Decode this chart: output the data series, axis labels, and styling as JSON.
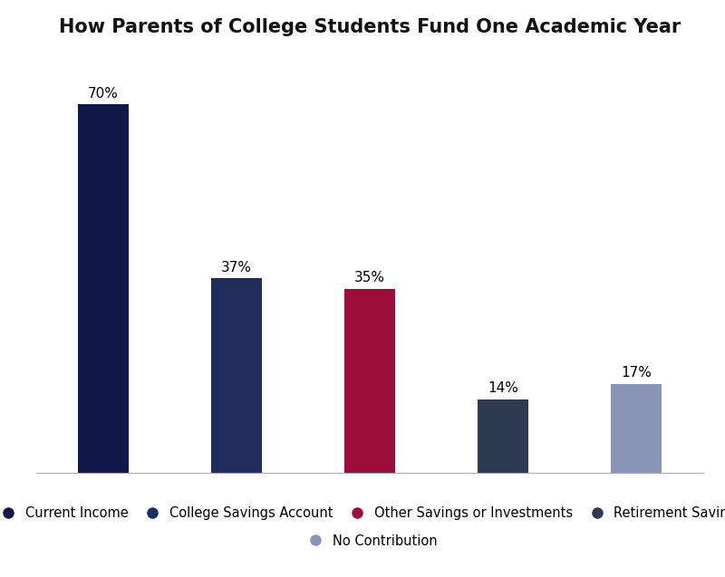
{
  "title": "How Parents of College Students Fund One Academic Year",
  "categories": [
    "Current Income",
    "College Savings Account",
    "Other Savings or Investments",
    "Retirement Savings",
    "No Contribution"
  ],
  "values": [
    70,
    37,
    35,
    14,
    17
  ],
  "bar_colors": [
    "#12174a",
    "#1e2d5e",
    "#9b0d3b",
    "#2e3a52",
    "#8a94b8"
  ],
  "label_values": [
    "70%",
    "37%",
    "35%",
    "14%",
    "17%"
  ],
  "legend_labels": [
    "Current Income",
    "College Savings Account",
    "Other Savings or Investments",
    "Retirement Savings",
    "No Contribution"
  ],
  "legend_colors": [
    "#12174a",
    "#1e2d5e",
    "#9b0d3b",
    "#2e3a52",
    "#8a94b8"
  ],
  "ylim": [
    0,
    80
  ],
  "title_fontsize": 15,
  "bar_label_fontsize": 11,
  "legend_fontsize": 10.5,
  "background_color": "#ffffff",
  "grid_color": "#d0d0d8"
}
